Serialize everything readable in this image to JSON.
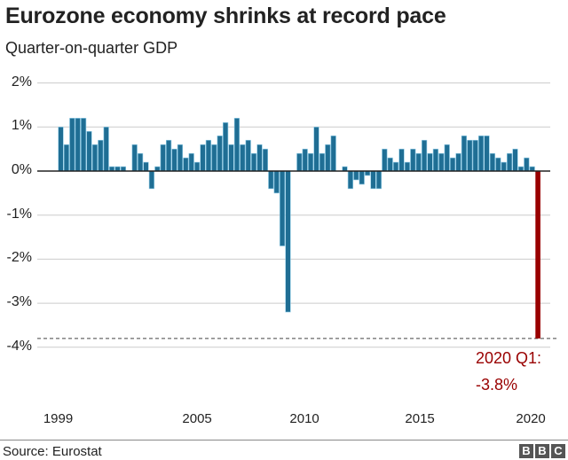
{
  "header": {
    "title": "Eurozone economy shrinks at record pace",
    "subtitle": "Quarter-on-quarter GDP"
  },
  "y_axis": {
    "ticks": [
      {
        "label": "2%",
        "value": 2
      },
      {
        "label": "1%",
        "value": 1
      },
      {
        "label": "0%",
        "value": 0
      },
      {
        "label": "-1%",
        "value": -1
      },
      {
        "label": "-2%",
        "value": -2
      },
      {
        "label": "-3%",
        "value": -3
      },
      {
        "label": "-4%",
        "value": -4
      }
    ]
  },
  "x_axis": {
    "ticks": [
      {
        "label": "1999",
        "index": 0
      },
      {
        "label": "2005",
        "index": 24
      },
      {
        "label": "2010",
        "index": 44
      },
      {
        "label": "2015",
        "index": 64
      },
      {
        "label": "2020",
        "index": 84
      }
    ]
  },
  "annotation": {
    "line1": "2020 Q1:",
    "line2": "-3.8%",
    "reference_value": -3.8
  },
  "footer": {
    "source": "Source: Eurostat",
    "logo_letters": [
      "B",
      "B",
      "C"
    ]
  },
  "colors": {
    "bar": "#1f6e94",
    "bar_edge": "#8ecae6",
    "highlight": "#990000",
    "grid": "#cccccc",
    "zero_line": "#222222"
  },
  "chart_data": {
    "type": "bar",
    "title": "Eurozone economy shrinks at record pace",
    "subtitle": "Quarter-on-quarter GDP",
    "xlabel": "",
    "ylabel": "Quarter-on-quarter GDP (%)",
    "ylim": [
      -4,
      2
    ],
    "grid": true,
    "legend": null,
    "source": "Eurostat",
    "categories": [
      "1999 Q1",
      "1999 Q2",
      "1999 Q3",
      "1999 Q4",
      "2000 Q1",
      "2000 Q2",
      "2000 Q3",
      "2000 Q4",
      "2001 Q1",
      "2001 Q2",
      "2001 Q3",
      "2001 Q4",
      "2002 Q1",
      "2002 Q2",
      "2002 Q3",
      "2002 Q4",
      "2003 Q1",
      "2003 Q2",
      "2003 Q3",
      "2003 Q4",
      "2004 Q1",
      "2004 Q2",
      "2004 Q3",
      "2004 Q4",
      "2005 Q1",
      "2005 Q2",
      "2005 Q3",
      "2005 Q4",
      "2006 Q1",
      "2006 Q2",
      "2006 Q3",
      "2006 Q4",
      "2007 Q1",
      "2007 Q2",
      "2007 Q3",
      "2007 Q4",
      "2008 Q1",
      "2008 Q2",
      "2008 Q3",
      "2008 Q4",
      "2009 Q1",
      "2009 Q2",
      "2009 Q3",
      "2009 Q4",
      "2010 Q1",
      "2010 Q2",
      "2010 Q3",
      "2010 Q4",
      "2011 Q1",
      "2011 Q2",
      "2011 Q3",
      "2011 Q4",
      "2012 Q1",
      "2012 Q2",
      "2012 Q3",
      "2012 Q4",
      "2013 Q1",
      "2013 Q2",
      "2013 Q3",
      "2013 Q4",
      "2014 Q1",
      "2014 Q2",
      "2014 Q3",
      "2014 Q4",
      "2015 Q1",
      "2015 Q2",
      "2015 Q3",
      "2015 Q4",
      "2016 Q1",
      "2016 Q2",
      "2016 Q3",
      "2016 Q4",
      "2017 Q1",
      "2017 Q2",
      "2017 Q3",
      "2017 Q4",
      "2018 Q1",
      "2018 Q2",
      "2018 Q3",
      "2018 Q4",
      "2019 Q1",
      "2019 Q2",
      "2019 Q3",
      "2019 Q4",
      "2020 Q1"
    ],
    "values": [
      1.0,
      0.6,
      1.2,
      1.2,
      1.2,
      0.9,
      0.6,
      0.7,
      1.0,
      0.1,
      0.1,
      0.1,
      0.0,
      0.6,
      0.4,
      0.2,
      -0.4,
      0.1,
      0.6,
      0.7,
      0.5,
      0.6,
      0.3,
      0.4,
      0.2,
      0.6,
      0.7,
      0.6,
      0.8,
      1.1,
      0.6,
      1.2,
      0.6,
      0.7,
      0.4,
      0.6,
      0.5,
      -0.4,
      -0.5,
      -1.7,
      -3.2,
      0.0,
      0.4,
      0.5,
      0.4,
      1.0,
      0.4,
      0.6,
      0.8,
      0.0,
      0.1,
      -0.4,
      -0.2,
      -0.3,
      -0.1,
      -0.4,
      -0.4,
      0.5,
      0.3,
      0.2,
      0.5,
      0.2,
      0.5,
      0.4,
      0.7,
      0.4,
      0.5,
      0.4,
      0.6,
      0.3,
      0.4,
      0.8,
      0.7,
      0.7,
      0.8,
      0.8,
      0.4,
      0.3,
      0.2,
      0.4,
      0.5,
      0.1,
      0.3,
      0.1,
      -3.8
    ],
    "highlight": {
      "category": "2020 Q1",
      "value": -3.8,
      "color": "#990000"
    },
    "reference_line": {
      "value": -3.8,
      "style": "dashed"
    },
    "x_tick_labels": [
      "1999",
      "2005",
      "2010",
      "2015",
      "2020"
    ],
    "y_tick_labels": [
      "2%",
      "1%",
      "0%",
      "-1%",
      "-2%",
      "-3%",
      "-4%"
    ],
    "annotations": [
      "2020 Q1:",
      "-3.8%"
    ]
  }
}
